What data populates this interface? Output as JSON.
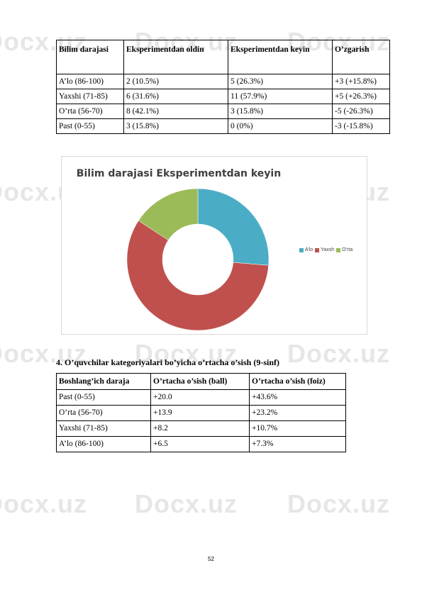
{
  "watermark": "Docx.uz",
  "table1": {
    "headers": [
      "Bilim darajasi",
      "Eksperimentdan oldin",
      "Eksperimentdan keyin",
      "O’zgarish"
    ],
    "rows": [
      [
        "A’lo (86-100)",
        "2 (10.5%)",
        "5 (26.3%)",
        "+3 (+15.8%)"
      ],
      [
        "Yaxshi (71-85)",
        "6 (31.6%)",
        "11 (57.9%)",
        "+5 (+26.3%)"
      ],
      [
        "O’rta (56-70)",
        "8 (42.1%)",
        "3 (15.8%)",
        "-5 (-26.3%)"
      ],
      [
        "Past (0-55)",
        "3 (15.8%)",
        "0 (0%)",
        "-3 (-15.8%)"
      ]
    ]
  },
  "chart_data": {
    "type": "pie",
    "title": "Bilim darajasi Eksperimentdan keyin",
    "categories": [
      "A’lo",
      "Yaxshi",
      "O’rta"
    ],
    "values": [
      5,
      11,
      3
    ],
    "colors": [
      "#4bacc6",
      "#c0504d",
      "#9bbb59"
    ],
    "donut": true,
    "legend_labels": [
      "A’lo",
      "Yaxsh",
      "O’rta"
    ],
    "legend_position": "right"
  },
  "section_heading": "4. O’quvchilar kategoriyalari bo’yicha o’rtacha o’sish (9-sinf)",
  "table2": {
    "headers": [
      "Boshlang’ich daraja",
      "O’rtacha o’sish (ball)",
      "O’rtacha o’sish (foiz)"
    ],
    "rows": [
      [
        "Past (0-55)",
        "+20.0",
        "+43.6%"
      ],
      [
        "O’rta (56-70)",
        "+13.9",
        "+23.2%"
      ],
      [
        "Yaxshi (71-85)",
        "+8.2",
        "+10.7%"
      ],
      [
        "A’lo (86-100)",
        "+6.5",
        "+7.3%"
      ]
    ]
  },
  "page_number": "52"
}
